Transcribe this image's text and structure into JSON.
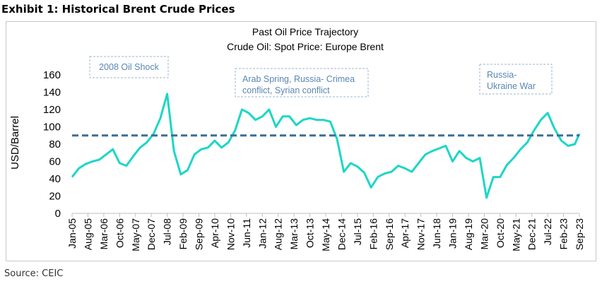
{
  "exhibit_title": "Exhibit 1: Historical Brent Crude Prices",
  "source": "Source: CEIC",
  "chart_data": {
    "type": "line",
    "title": "Past Oil Price Trajectory",
    "subtitle": "Crude Oil: Spot Price: Europe Brent",
    "ylabel": "USD/Barrel",
    "ylim": [
      0,
      160
    ],
    "yticks": [
      "0",
      "20",
      "40",
      "60",
      "80",
      "100",
      "120",
      "140",
      "160"
    ],
    "xticks": [
      "Jan-05",
      "Aug-05",
      "Mar-06",
      "Oct-06",
      "May-07",
      "Dec-07",
      "Jul-08",
      "Feb-09",
      "Sep-09",
      "Apr-10",
      "Nov-10",
      "Jun-11",
      "Jan-12",
      "Aug-12",
      "Mar-13",
      "Oct-13",
      "May-14",
      "Dec-14",
      "Jul-15",
      "Feb-16",
      "Sep-16",
      "Apr-17",
      "Nov-17",
      "Jun-18",
      "Jan-19",
      "Aug-19",
      "Mar-20",
      "Oct-20",
      "May-21",
      "Dec-21",
      "Jul-22",
      "Feb-23",
      "Sep-23"
    ],
    "reference_line": 90,
    "colors": {
      "series": "#1ed6c6",
      "reference": "#3c6f96",
      "annotation": "#5a86b4"
    },
    "annotations": [
      {
        "lines": [
          "2008 Oil Shock"
        ]
      },
      {
        "lines": [
          "Arab Spring, Russia- Crimea",
          "conflict, Syrian conflict"
        ]
      },
      {
        "lines": [
          "Russia-",
          "Ukraine War"
        ]
      }
    ],
    "series": [
      {
        "x": [
          "Jan-05",
          "Apr-05",
          "Jul-05",
          "Oct-05",
          "Jan-06",
          "Apr-06",
          "Jul-06",
          "Oct-06",
          "Jan-07",
          "Apr-07",
          "Jul-07",
          "Oct-07",
          "Jan-08",
          "Apr-08",
          "Jul-08",
          "Oct-08",
          "Jan-09",
          "Apr-09",
          "Jul-09",
          "Oct-09",
          "Jan-10",
          "Apr-10",
          "Jul-10",
          "Oct-10",
          "Jan-11",
          "Apr-11",
          "Jul-11",
          "Oct-11",
          "Jan-12",
          "Apr-12",
          "Jul-12",
          "Oct-12",
          "Jan-13",
          "Apr-13",
          "Jul-13",
          "Oct-13",
          "Jan-14",
          "Apr-14",
          "Jul-14",
          "Oct-14",
          "Jan-15",
          "Apr-15",
          "Jul-15",
          "Oct-15",
          "Jan-16",
          "Apr-16",
          "Jul-16",
          "Oct-16",
          "Jan-17",
          "Apr-17",
          "Jul-17",
          "Oct-17",
          "Jan-18",
          "Apr-18",
          "Jul-18",
          "Oct-18",
          "Jan-19",
          "Apr-19",
          "Jul-19",
          "Oct-19",
          "Jan-20",
          "Apr-20",
          "Jul-20",
          "Oct-20",
          "Jan-21",
          "Apr-21",
          "Jul-21",
          "Oct-21",
          "Jan-22",
          "Apr-22",
          "Jul-22",
          "Oct-22",
          "Jan-23",
          "Apr-23",
          "Jul-23",
          "Sep-23"
        ],
        "values": [
          42,
          52,
          57,
          60,
          62,
          68,
          74,
          58,
          55,
          66,
          76,
          82,
          92,
          110,
          138,
          72,
          45,
          50,
          68,
          74,
          76,
          84,
          76,
          82,
          96,
          120,
          116,
          108,
          112,
          120,
          100,
          112,
          112,
          102,
          108,
          110,
          108,
          108,
          106,
          86,
          48,
          58,
          54,
          47,
          30,
          42,
          46,
          48,
          55,
          52,
          48,
          58,
          68,
          72,
          75,
          78,
          60,
          72,
          64,
          60,
          64,
          18,
          42,
          42,
          56,
          64,
          74,
          82,
          96,
          108,
          116,
          98,
          84,
          78,
          80,
          92
        ]
      }
    ]
  }
}
